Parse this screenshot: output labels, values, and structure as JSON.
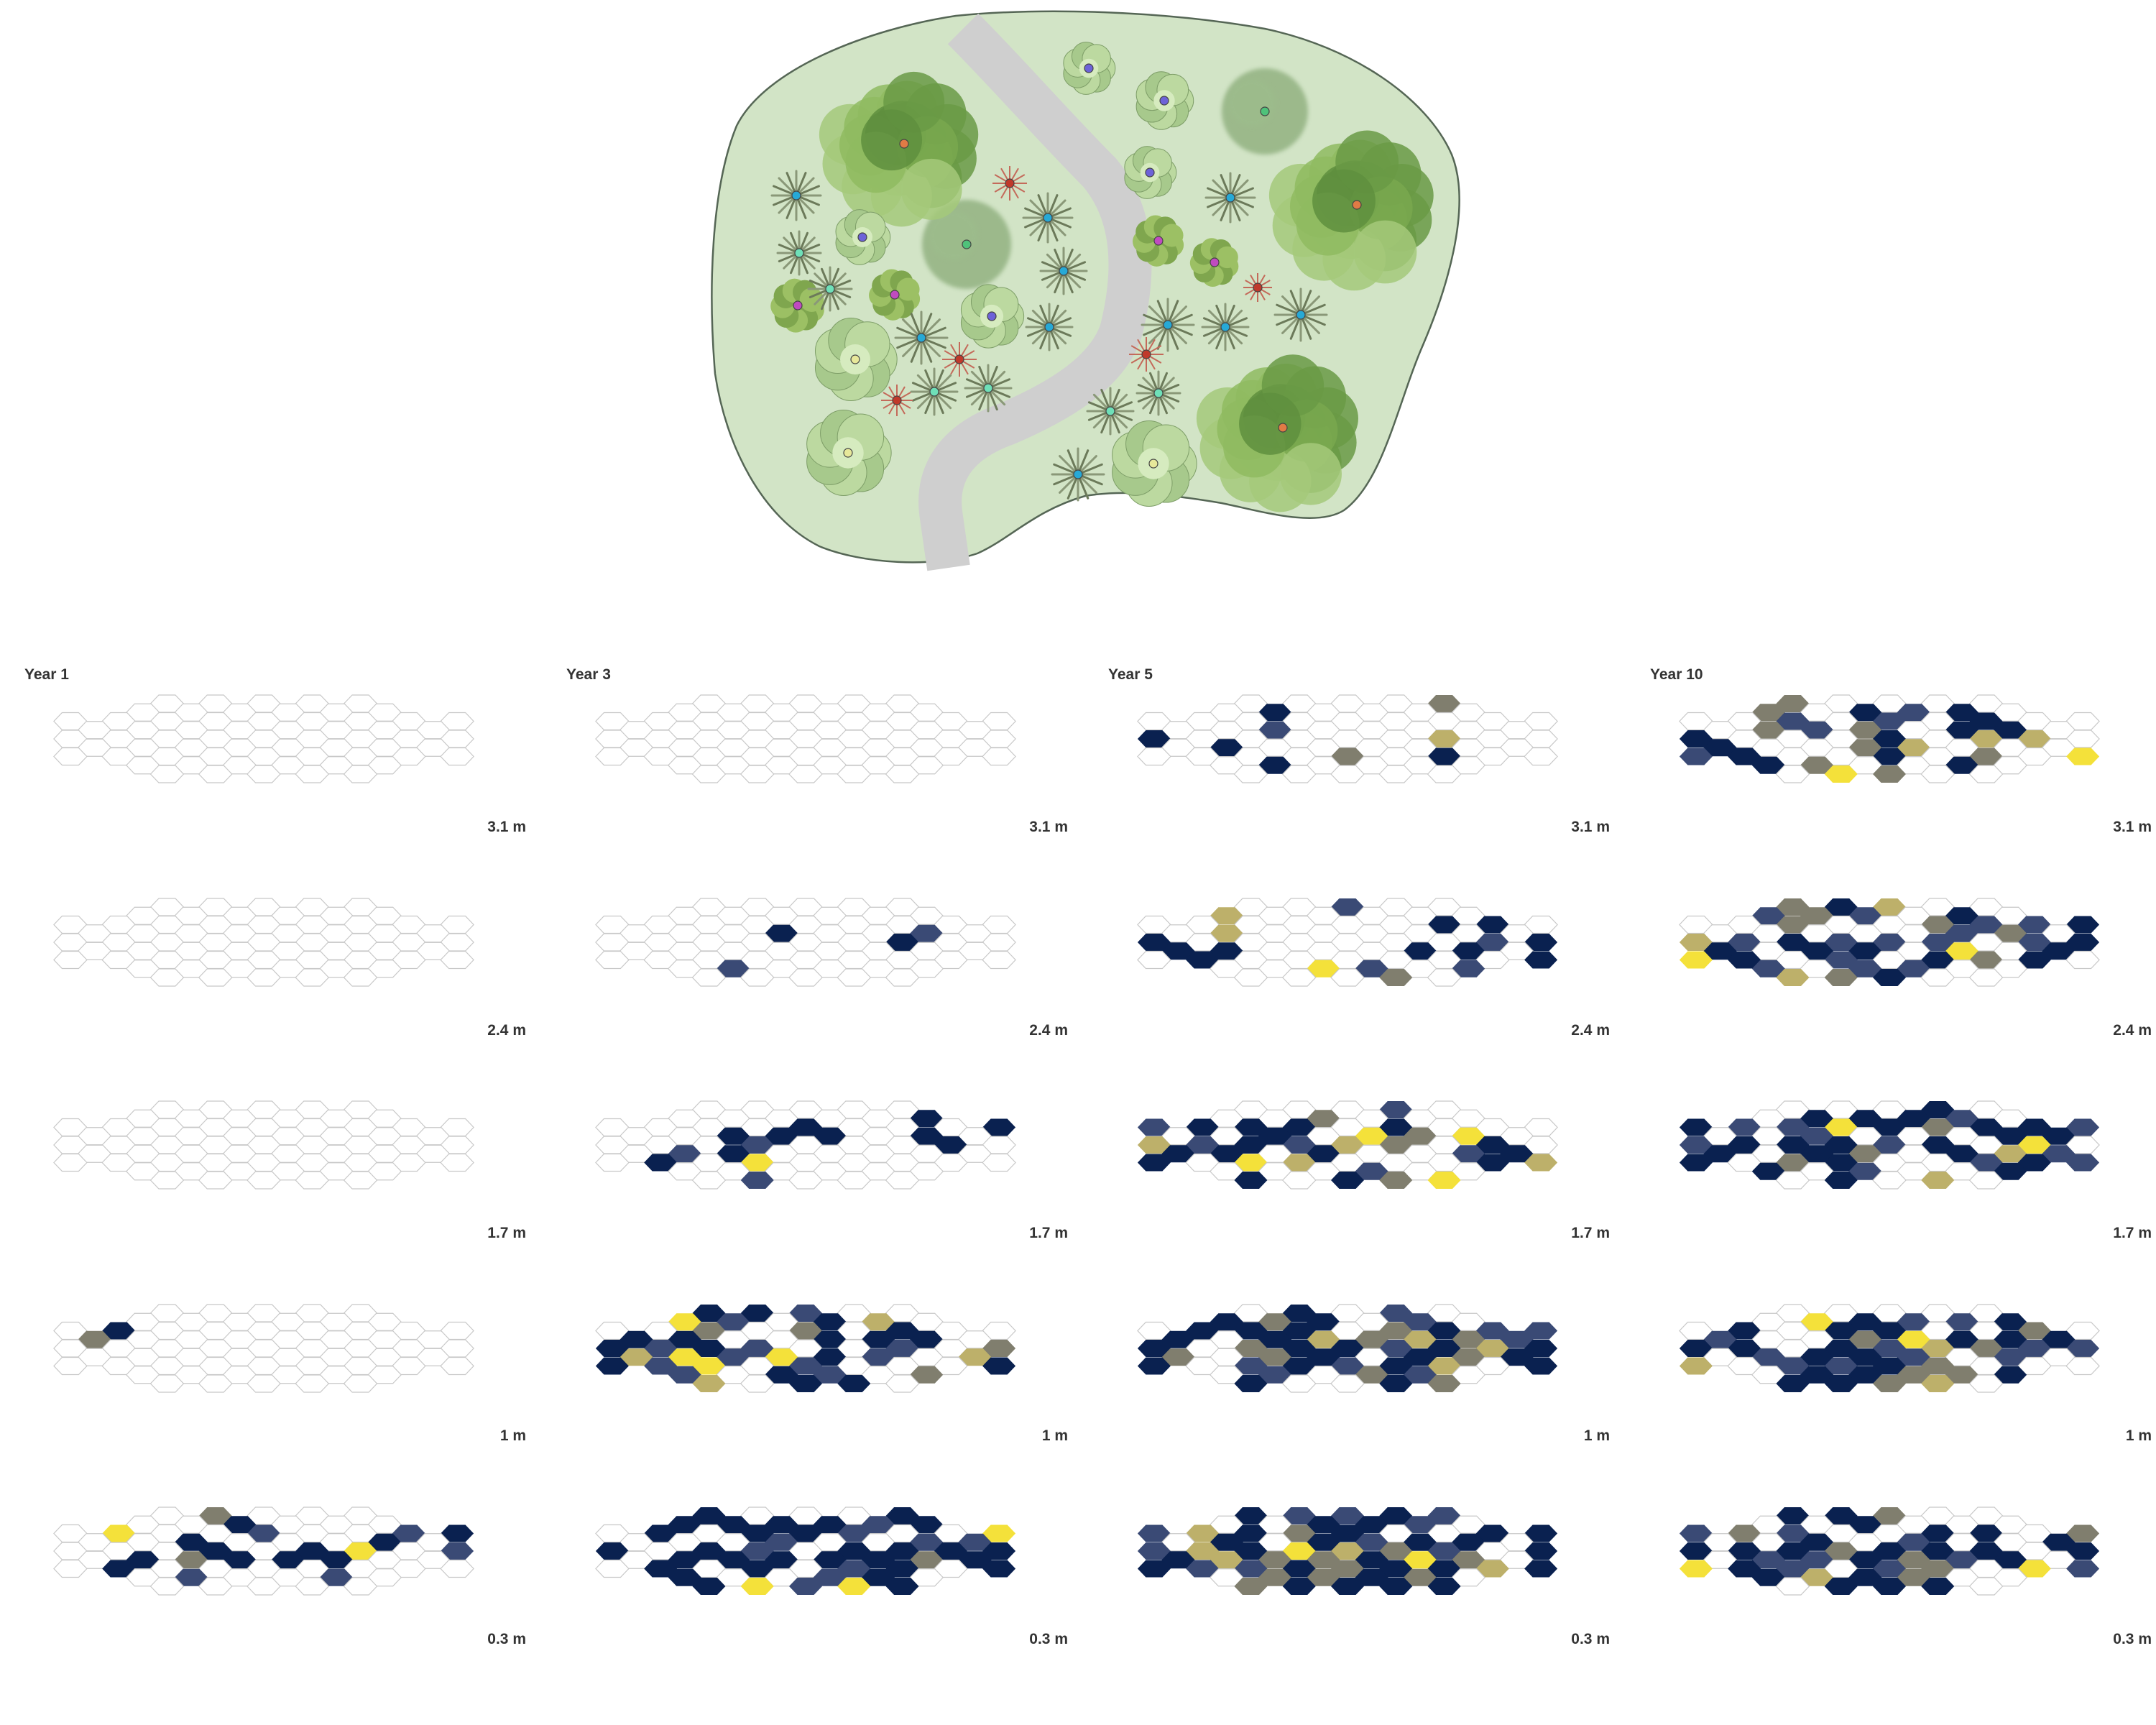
{
  "columns": [
    {
      "title": "Year 1"
    },
    {
      "title": "Year 3"
    },
    {
      "title": "Year 5"
    },
    {
      "title": "Year 10"
    }
  ],
  "layers": [
    {
      "label": "3.1 m"
    },
    {
      "label": "2.4 m"
    },
    {
      "label": "1.7 m"
    },
    {
      "label": "1 m"
    },
    {
      "label": "0.3 m"
    }
  ],
  "colors": {
    "park_fill": "#d2e4c6",
    "park_stroke": "#556655",
    "path": "#cfcfcf",
    "hex_stroke": "#c8c8c8",
    "navy": "#0a2150",
    "slate": "#3a4a75",
    "gray": "#807e6e",
    "khaki": "#bdb06a",
    "yellow": "#f4e13a",
    "tree_green": "#6f9a4a",
    "shrub_green": "#a8c88a",
    "grass": "#6c7a5a",
    "red_plant": "#c0392b"
  },
  "legend_marks": [
    {
      "kind": "large-tree",
      "dot": "#e07b45"
    },
    {
      "kind": "hazy-tree",
      "dot": "#4fc27a"
    },
    {
      "kind": "round-shrub",
      "dot": "#6d63d8"
    },
    {
      "kind": "pale-shrub",
      "dot": "#e7e89a"
    },
    {
      "kind": "small-shrub",
      "dot": "#c04bc0"
    },
    {
      "kind": "grass-tuft",
      "dot": "#27a9d6"
    },
    {
      "kind": "grass-tuft-light",
      "dot": "#6fe0b8"
    },
    {
      "kind": "spiky-plant",
      "dot": "#c0392b"
    }
  ]
}
